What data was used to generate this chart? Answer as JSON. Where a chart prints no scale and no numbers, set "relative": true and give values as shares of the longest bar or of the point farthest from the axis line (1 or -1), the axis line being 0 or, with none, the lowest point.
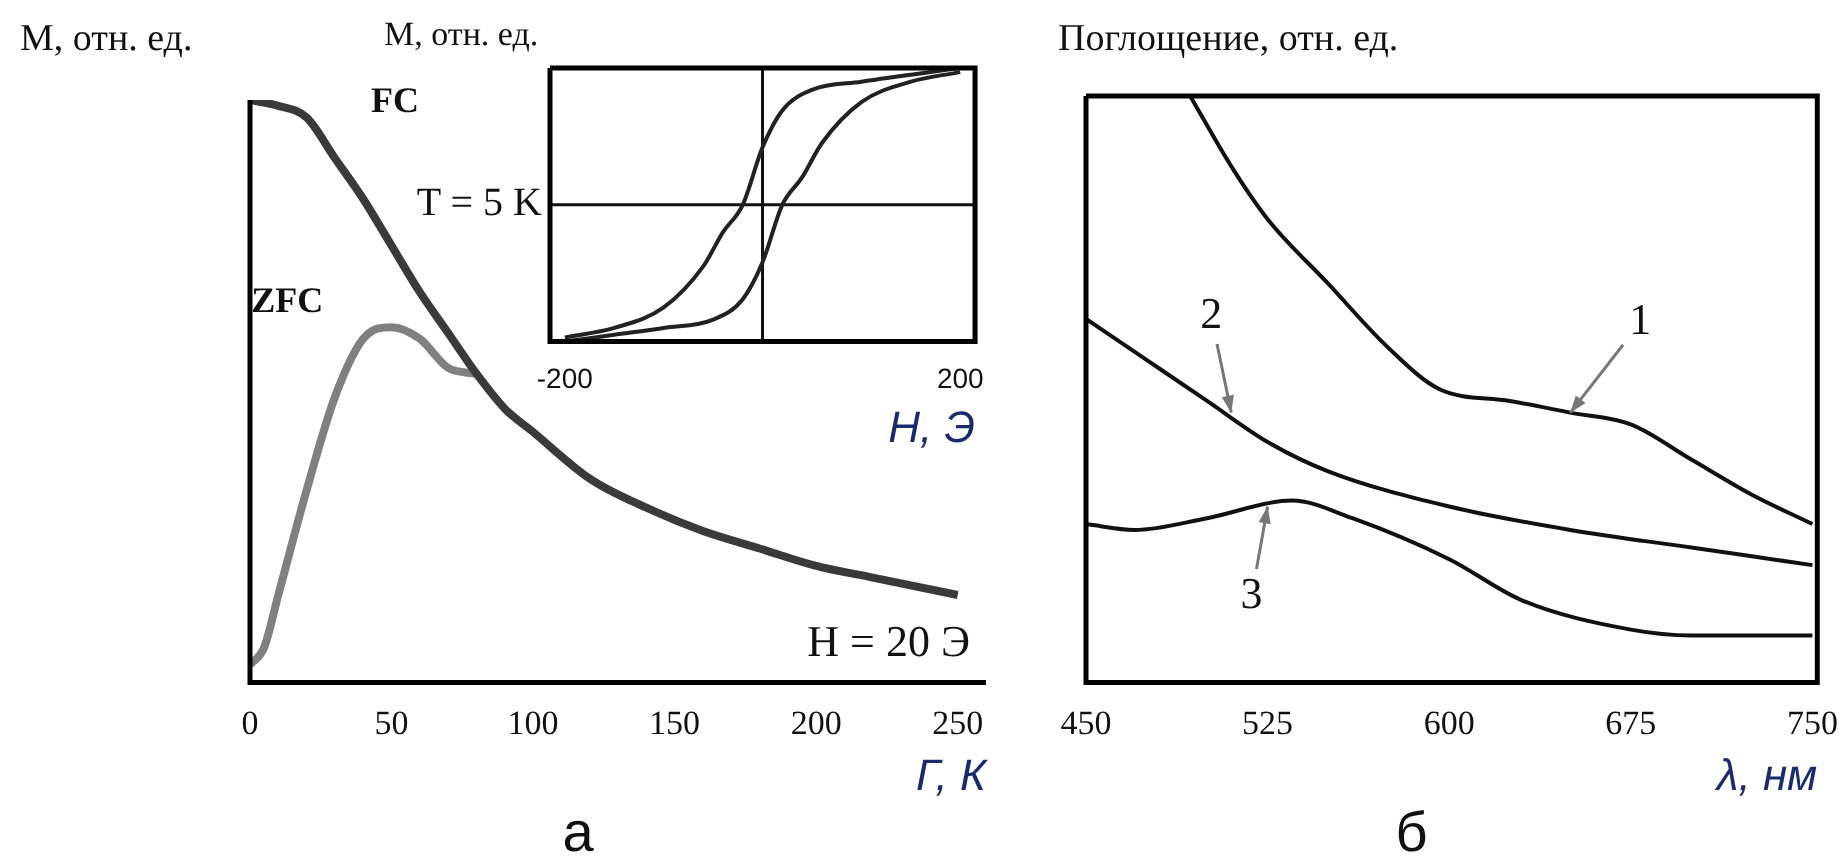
{
  "chart_data": [
    {
      "type": "line",
      "ylabel": "M, отн. ед.",
      "xlabel": "Г, К",
      "relative": true,
      "xlim": [
        0,
        260
      ],
      "xticks": [
        0,
        50,
        100,
        150,
        200,
        250
      ],
      "tick_labels": "x",
      "grid": false,
      "legend": false,
      "marker": "none",
      "line_style": "solid",
      "series": [
        {
          "color": "#3a3a3a",
          "x": [
            0,
            10,
            20,
            30,
            40,
            50,
            60,
            70,
            80,
            90,
            100,
            120,
            140,
            160,
            180,
            200,
            220,
            250
          ],
          "values": [
            1.0,
            0.99,
            0.97,
            0.9,
            0.83,
            0.75,
            0.67,
            0.6,
            0.53,
            0.47,
            0.43,
            0.35,
            0.3,
            0.26,
            0.23,
            0.2,
            0.18,
            0.15
          ]
        },
        {
          "color": "#808080",
          "x": [
            0,
            5,
            10,
            20,
            30,
            40,
            50,
            60,
            70,
            80
          ],
          "values": [
            0.03,
            0.06,
            0.15,
            0.33,
            0.49,
            0.59,
            0.61,
            0.59,
            0.54,
            0.53
          ]
        }
      ],
      "annotations": [
        {
          "text": "FC",
          "x": 30,
          "y": 0.9
        },
        {
          "text": "ZFC",
          "x": 40,
          "y": 0.59
        },
        "H = 20 Э",
        "а"
      ]
    },
    {
      "type": "line",
      "ylabel": "M, отн. ед.",
      "xlabel": "H, Э",
      "relative": true,
      "xlim": [
        -215,
        215
      ],
      "xticks": [
        -200,
        200
      ],
      "tick_labels": "x",
      "grid": false,
      "legend": false,
      "marker": "none",
      "line_style": "solid",
      "series": [
        {
          "color": "#222222",
          "x": [
            -200,
            -150,
            -100,
            -60,
            -40,
            -20,
            0,
            20,
            50,
            100,
            200
          ],
          "values": [
            -0.97,
            -0.9,
            -0.75,
            -0.45,
            -0.2,
            0,
            0.42,
            0.69,
            0.84,
            0.9,
            1.0
          ]
        },
        {
          "color": "#222222",
          "x": [
            -200,
            -150,
            -100,
            -50,
            -20,
            0,
            20,
            40,
            60,
            100,
            150,
            200
          ],
          "values": [
            -1.0,
            -0.95,
            -0.9,
            -0.84,
            -0.69,
            -0.42,
            0,
            0.2,
            0.45,
            0.75,
            0.9,
            0.97
          ]
        }
      ],
      "annotations": [
        "T = 5 K"
      ]
    },
    {
      "type": "line",
      "ylabel": "Поглощение, отн. ед.",
      "xlabel": "λ, нм",
      "relative": true,
      "xlim": [
        450,
        752
      ],
      "xticks": [
        450,
        525,
        600,
        675,
        750
      ],
      "tick_labels": "x",
      "grid": false,
      "legend": false,
      "marker": "none",
      "line_style": "solid",
      "series": [
        {
          "color": "#111111",
          "x": [
            493,
            510,
            525,
            550,
            575,
            596,
            625,
            650,
            675,
            700,
            725,
            750
          ],
          "values": [
            1.0,
            0.88,
            0.79,
            0.68,
            0.57,
            0.5,
            0.48,
            0.46,
            0.44,
            0.38,
            0.32,
            0.27
          ]
        },
        {
          "color": "#111111",
          "x": [
            450,
            475,
            500,
            525,
            550,
            600,
            650,
            700,
            750
          ],
          "values": [
            0.62,
            0.55,
            0.48,
            0.41,
            0.36,
            0.3,
            0.26,
            0.23,
            0.2
          ]
        },
        {
          "color": "#111111",
          "x": [
            450,
            470,
            500,
            535,
            560,
            600,
            630,
            675,
            700,
            750
          ],
          "values": [
            0.27,
            0.26,
            0.28,
            0.31,
            0.28,
            0.21,
            0.14,
            0.09,
            0.08,
            0.08
          ]
        }
      ],
      "annotations": [
        {
          "text": "1",
          "x": 650,
          "y": 0.46
        },
        {
          "text": "2",
          "x": 510,
          "y": 0.46
        },
        {
          "text": "3",
          "x": 525,
          "y": 0.3
        },
        "б"
      ]
    }
  ]
}
